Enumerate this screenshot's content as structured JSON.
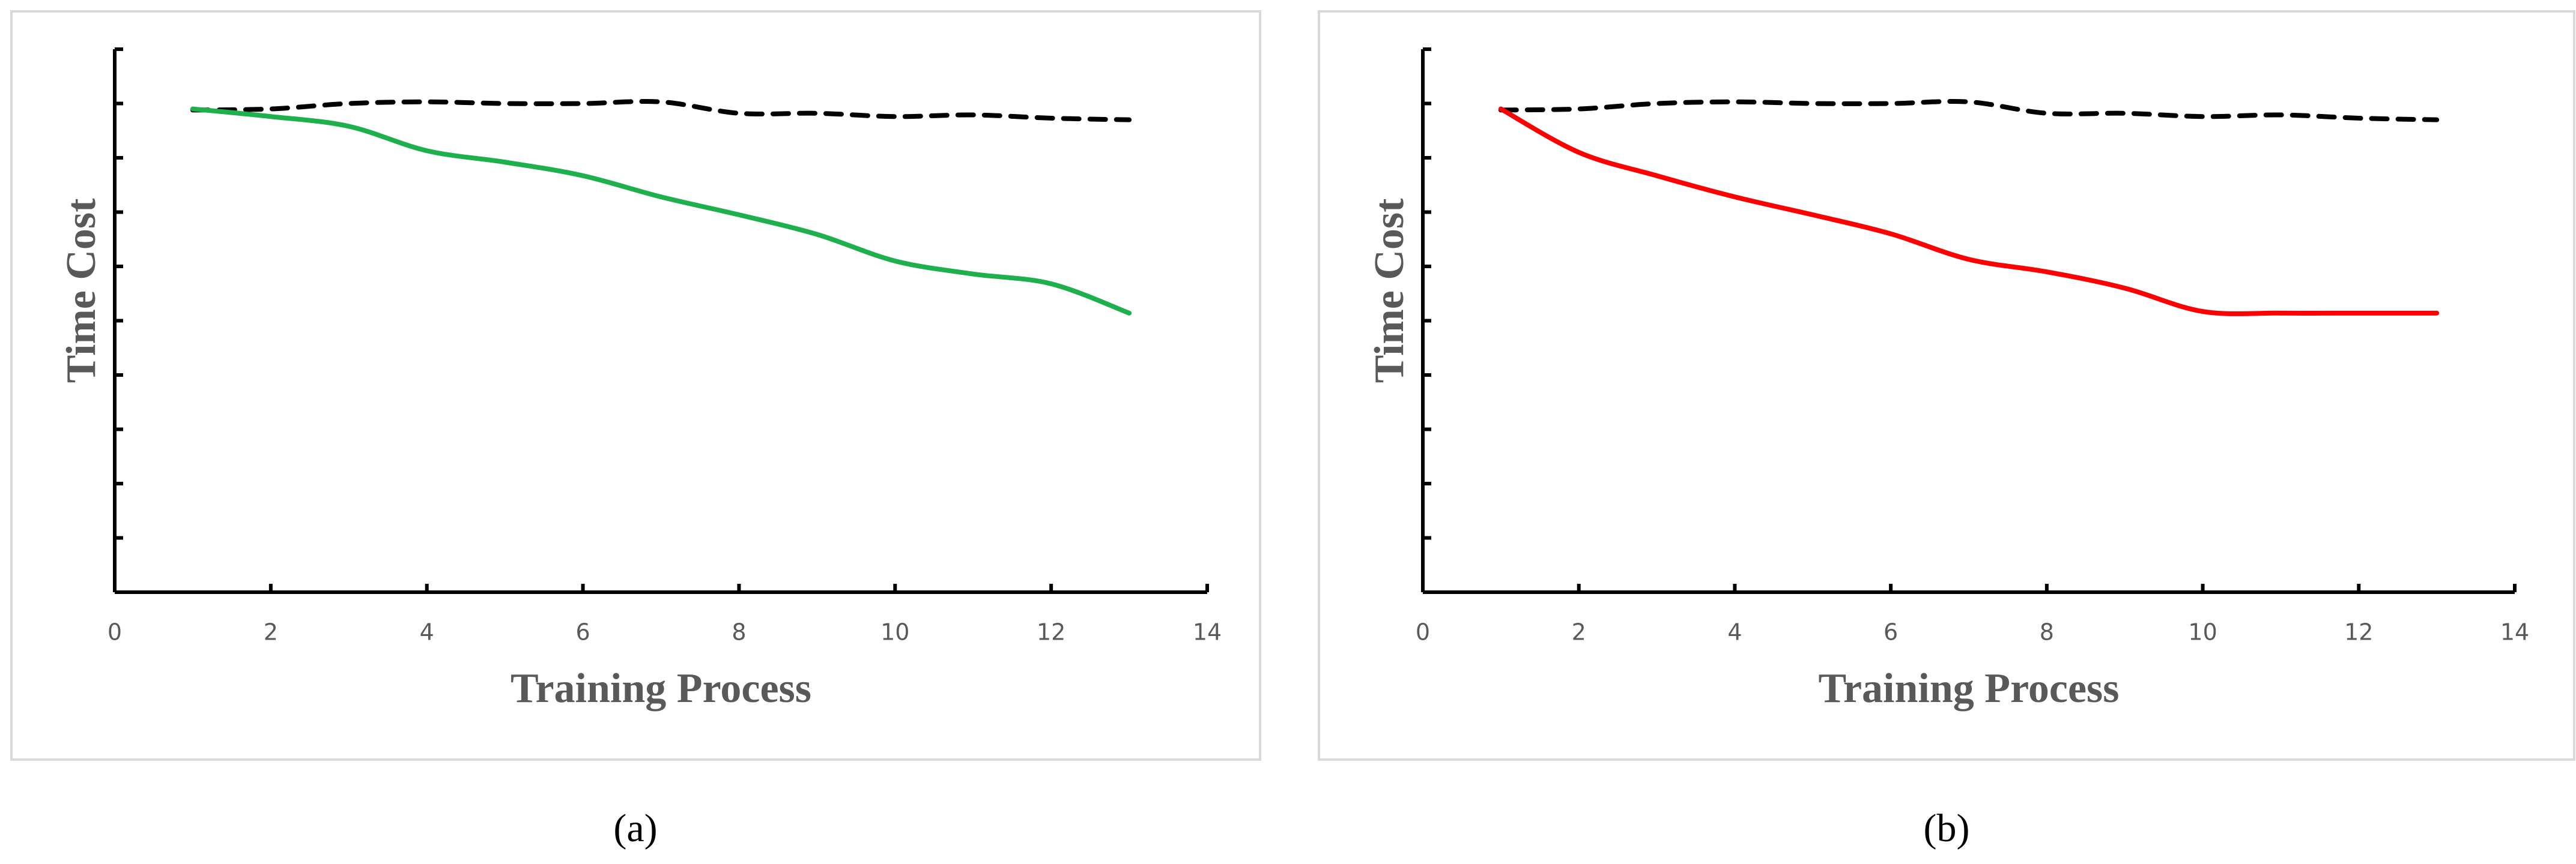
{
  "chart_data": [
    {
      "type": "line",
      "caption": "(a)",
      "x_label": "Training Process",
      "y_label": "Time Cost",
      "xlim": [
        0,
        14
      ],
      "xticks": [
        0,
        2,
        4,
        6,
        8,
        10,
        12,
        14
      ],
      "ylim": [
        0,
        10
      ],
      "yticks": [
        0,
        1,
        2,
        3,
        4,
        5,
        6,
        7,
        8,
        9,
        10
      ],
      "x": [
        1,
        2,
        3,
        4,
        5,
        6,
        7,
        8,
        9,
        10,
        11,
        12,
        13
      ],
      "series": [
        {
          "color": "#000000",
          "dashed": true,
          "values": [
            8.88,
            8.9,
            9.0,
            9.03,
            9.0,
            9.0,
            9.03,
            8.82,
            8.82,
            8.76,
            8.79,
            8.73,
            8.7
          ]
        },
        {
          "color": "#1db04c",
          "dashed": false,
          "values": [
            8.9,
            8.76,
            8.58,
            8.13,
            7.92,
            7.67,
            7.28,
            6.95,
            6.59,
            6.1,
            5.86,
            5.68,
            5.14
          ]
        }
      ]
    },
    {
      "type": "line",
      "caption": "(b)",
      "x_label": "Training Process",
      "y_label": "Time Cost",
      "xlim": [
        0,
        14
      ],
      "xticks": [
        0,
        2,
        4,
        6,
        8,
        10,
        12,
        14
      ],
      "ylim": [
        0,
        10
      ],
      "yticks": [
        0,
        1,
        2,
        3,
        4,
        5,
        6,
        7,
        8,
        9,
        10
      ],
      "x": [
        1,
        2,
        3,
        4,
        5,
        6,
        7,
        8,
        9,
        10,
        11,
        12,
        13
      ],
      "series": [
        {
          "color": "#000000",
          "dashed": true,
          "values": [
            8.88,
            8.9,
            9.0,
            9.03,
            9.0,
            9.0,
            9.03,
            8.82,
            8.82,
            8.76,
            8.79,
            8.73,
            8.7
          ]
        },
        {
          "color": "#ff0000",
          "dashed": false,
          "values": [
            8.9,
            8.1,
            7.67,
            7.28,
            6.95,
            6.6,
            6.13,
            5.9,
            5.6,
            5.17,
            5.14,
            5.14,
            5.14
          ]
        }
      ]
    }
  ]
}
